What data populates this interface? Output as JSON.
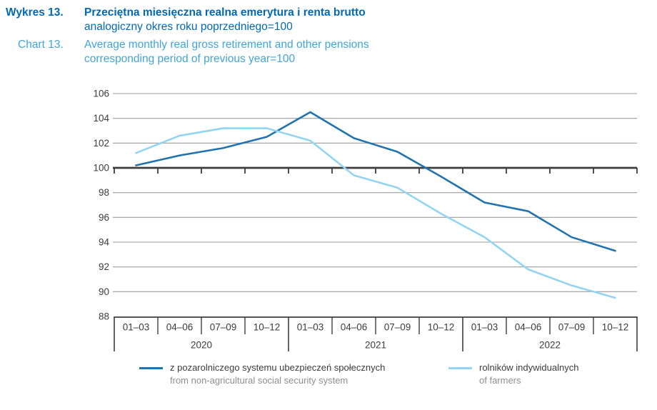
{
  "header": {
    "label_pl": "Wykres 13.",
    "title_pl": "Przeciętna miesięczna realna emerytura i renta brutto",
    "subtitle_pl": "analogiczny okres roku poprzedniego=100",
    "label_en": "Chart 13.",
    "title_en": "Average monthly real gross retirement and other pensions",
    "subtitle_en": "corresponding period of previous year=100"
  },
  "colors": {
    "title_pl": "#0069b4",
    "title_en": "#42a5da"
  },
  "chart_data": {
    "type": "line",
    "title": "Przeciętna miesięczna realna emerytura i renta brutto / Average monthly real gross retirement and other pensions, corresponding period of previous year=100",
    "x_groups": [
      {
        "year": "2020",
        "quarters": [
          "01–03",
          "04–06",
          "07–09",
          "10–12"
        ]
      },
      {
        "year": "2021",
        "quarters": [
          "01–03",
          "04–06",
          "07–09",
          "10–12"
        ]
      },
      {
        "year": "2022",
        "quarters": [
          "01–03",
          "04–06",
          "07–09",
          "10–12"
        ]
      }
    ],
    "series": [
      {
        "name_pl": "z pozarolniczego systemu ubezpieczeń społecznych",
        "name_en": "from non-agricultural social security system",
        "color": "#2173ae",
        "values": [
          100.2,
          101.0,
          101.6,
          102.5,
          104.5,
          102.4,
          101.3,
          99.3,
          97.2,
          96.5,
          94.4,
          93.3
        ]
      },
      {
        "name_pl": "rolników indywidualnych",
        "name_en": "of farmers",
        "color": "#93d4f1",
        "values": [
          101.2,
          102.6,
          103.2,
          103.2,
          102.2,
          99.4,
          98.4,
          96.3,
          94.4,
          91.8,
          90.5,
          89.5
        ]
      }
    ],
    "y_ticks": [
      106,
      104,
      102,
      100,
      98,
      96,
      94,
      92,
      90,
      88
    ],
    "ylim": [
      88,
      106
    ],
    "baseline": 100,
    "grid": true,
    "legend_position": "bottom",
    "colors": {
      "grid": "#9b9b9b",
      "axis": "#3d3d3d",
      "axis_text": "#3b3b3b"
    }
  }
}
